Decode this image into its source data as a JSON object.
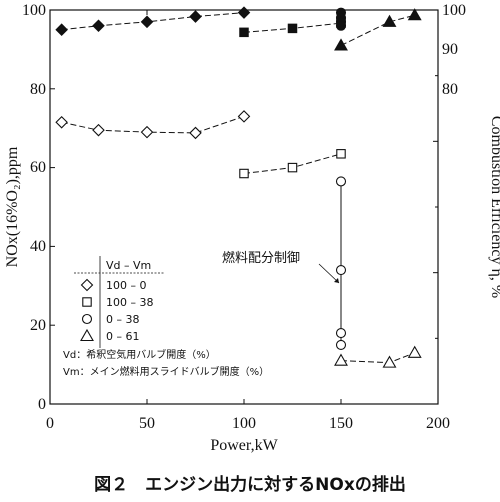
{
  "chart_data": {
    "type": "scatter",
    "xlabel": "Power,kW",
    "ylabel_left": "NOx(16%O₂),ppm",
    "ylabel_right": "Combustion Efficiency η, %",
    "xlim": [
      0,
      200
    ],
    "ylim_left": [
      0,
      100
    ],
    "ylim_right": [
      70,
      100
    ],
    "x_ticks": [
      "0",
      "50",
      "100",
      "150",
      "200"
    ],
    "y_ticks_left": [
      "0",
      "20",
      "40",
      "60",
      "80",
      "100"
    ],
    "y_ticks_right": [
      "80",
      "90",
      "100"
    ],
    "legend": {
      "header": "Vd – Vm",
      "entries": [
        "100 – 0",
        "100 – 38",
        "0 – 38",
        "0 – 61"
      ]
    },
    "notes": [
      "Vd：希釈空気用バルブ開度（%）",
      "Vm：メイン燃料用スライドバルブ開度（%）"
    ],
    "annotation": "燃料配分制御",
    "caption": "図２　エンジン出力に対するNOxの排出",
    "series": [
      {
        "marker": "diamond",
        "axis": "left",
        "line": "dashed",
        "points": [
          [
            6,
            71.5
          ],
          [
            25,
            69.5
          ],
          [
            50,
            69
          ],
          [
            75,
            68.8
          ],
          [
            100,
            73
          ]
        ]
      },
      {
        "marker": "square",
        "axis": "left",
        "line": "dashed",
        "points": [
          [
            100,
            58.5
          ],
          [
            125,
            60
          ],
          [
            150,
            63.5
          ]
        ]
      },
      {
        "marker": "circle",
        "axis": "left",
        "line": "solid",
        "points": [
          [
            150,
            56.5
          ],
          [
            150,
            34
          ],
          [
            150,
            18
          ],
          [
            150,
            15
          ]
        ]
      },
      {
        "marker": "triangle",
        "axis": "left",
        "line": "dashed",
        "points": [
          [
            150,
            11
          ],
          [
            175,
            10.5
          ],
          [
            188,
            13
          ]
        ]
      },
      {
        "marker": "diamond",
        "axis": "right",
        "filled": true,
        "line": "dashed",
        "points": [
          [
            6,
            98.5
          ],
          [
            25,
            98.8
          ],
          [
            50,
            99.1
          ],
          [
            75,
            99.5
          ],
          [
            100,
            99.8
          ]
        ]
      },
      {
        "marker": "square",
        "axis": "right",
        "filled": true,
        "line": "dashed",
        "points": [
          [
            100,
            98.3
          ],
          [
            125,
            98.6
          ],
          [
            150,
            99
          ]
        ]
      },
      {
        "marker": "circle",
        "axis": "right",
        "filled": true,
        "line": "solid",
        "points": [
          [
            150,
            99.8
          ],
          [
            150,
            99.4
          ],
          [
            150,
            99.1
          ],
          [
            150,
            98.8
          ]
        ]
      },
      {
        "marker": "triangle",
        "axis": "right",
        "filled": true,
        "line": "dashed",
        "points": [
          [
            150,
            97.3
          ],
          [
            175,
            99.1
          ],
          [
            188,
            99.6
          ]
        ]
      }
    ]
  }
}
